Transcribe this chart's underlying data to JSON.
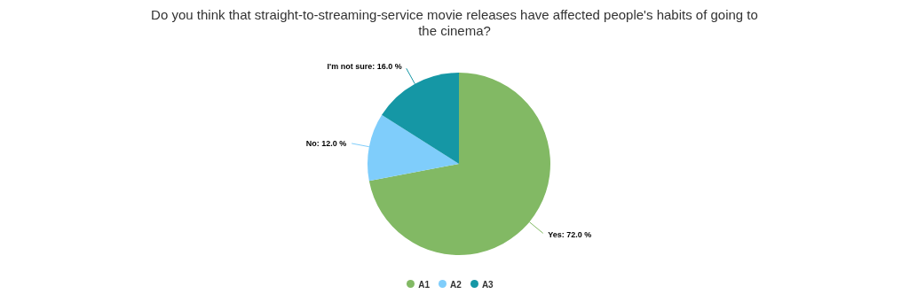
{
  "chart_data": {
    "type": "pie",
    "title": "Do you think that straight-to-streaming-service movie releases have affected people's habits of going to the cinema?",
    "categories": [
      "A1",
      "A2",
      "A3"
    ],
    "values": [
      72,
      12,
      16
    ],
    "value_labels": [
      "Yes: 72.0 %",
      "No: 12.0 %",
      "I'm not sure: 16.0 %"
    ],
    "colors": [
      "#82b964",
      "#7fcdfb",
      "#1597a5"
    ],
    "legend": "bottom"
  }
}
